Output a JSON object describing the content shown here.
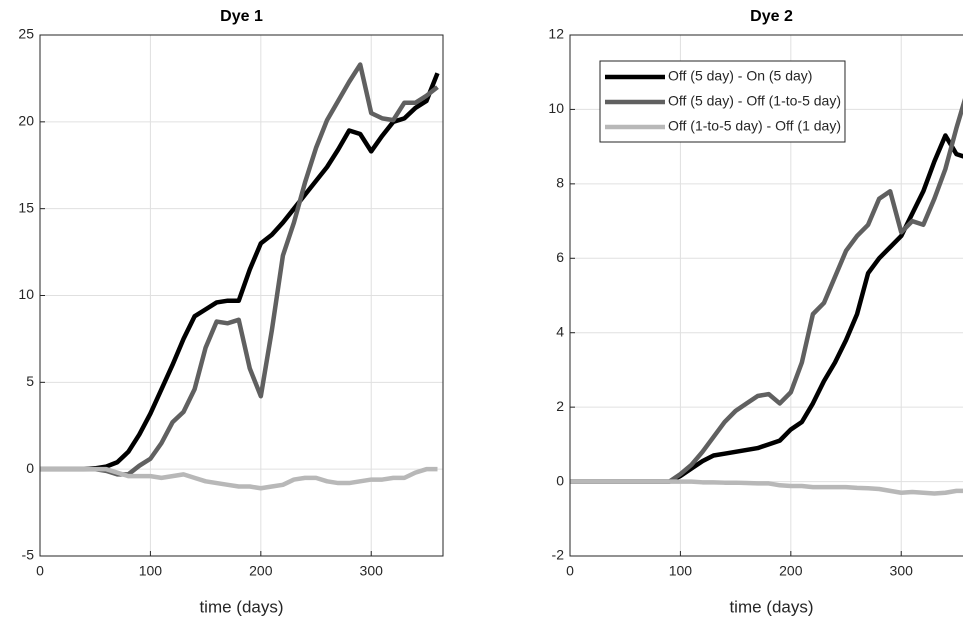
{
  "chart_data": [
    {
      "type": "line",
      "title": "Dye 1",
      "xlabel": "time (days)",
      "x": [
        0,
        10,
        20,
        30,
        40,
        50,
        60,
        70,
        80,
        90,
        100,
        110,
        120,
        130,
        140,
        150,
        160,
        170,
        180,
        190,
        200,
        210,
        220,
        230,
        240,
        250,
        260,
        270,
        280,
        290,
        300,
        310,
        320,
        330,
        340,
        350,
        360
      ],
      "xlim": [
        0,
        365
      ],
      "ylim": [
        -5,
        25
      ],
      "xticks": [
        0,
        100,
        200,
        300
      ],
      "yticks": [
        -5,
        0,
        5,
        10,
        15,
        20,
        25
      ],
      "grid": true,
      "series": [
        {
          "color": "#000000",
          "values": [
            0,
            0,
            0,
            0,
            0,
            0.05,
            0.15,
            0.4,
            1,
            2,
            3.2,
            4.6,
            6,
            7.5,
            8.8,
            9.2,
            9.6,
            9.7,
            9.7,
            11.5,
            13,
            13.5,
            14.2,
            15,
            15.8,
            16.6,
            17.4,
            18.4,
            19.5,
            19.3,
            18.3,
            19.2,
            20,
            20.2,
            20.8,
            21.2,
            22.8
          ]
        },
        {
          "color": "#606060",
          "values": [
            0,
            0,
            0,
            0,
            0,
            0,
            -0.1,
            -0.3,
            -0.3,
            0.2,
            0.6,
            1.5,
            2.7,
            3.3,
            4.6,
            7,
            8.5,
            8.4,
            8.6,
            5.8,
            4.2,
            8,
            12.3,
            14.2,
            16.5,
            18.5,
            20.1,
            21.2,
            22.3,
            23.3,
            20.5,
            20.2,
            20.1,
            21.1,
            21.1,
            21.5,
            22
          ]
        },
        {
          "color": "#b8b8b8",
          "values": [
            0,
            0,
            0,
            0,
            0,
            0,
            0,
            -0.2,
            -0.4,
            -0.4,
            -0.4,
            -0.5,
            -0.4,
            -0.3,
            -0.5,
            -0.7,
            -0.8,
            -0.9,
            -1,
            -1,
            -1.1,
            -1,
            -0.9,
            -0.6,
            -0.5,
            -0.5,
            -0.7,
            -0.8,
            -0.8,
            -0.7,
            -0.6,
            -0.6,
            -0.5,
            -0.5,
            -0.2,
            0,
            0
          ]
        }
      ]
    },
    {
      "type": "line",
      "title": "Dye 2",
      "xlabel": "time (days)",
      "x": [
        0,
        10,
        20,
        30,
        40,
        50,
        60,
        70,
        80,
        90,
        100,
        110,
        120,
        130,
        140,
        150,
        160,
        170,
        180,
        190,
        200,
        210,
        220,
        230,
        240,
        250,
        260,
        270,
        280,
        290,
        300,
        310,
        320,
        330,
        340,
        350,
        360
      ],
      "xlim": [
        0,
        365
      ],
      "ylim": [
        -2,
        12
      ],
      "xticks": [
        0,
        100,
        200,
        300
      ],
      "yticks": [
        -2,
        0,
        2,
        4,
        6,
        8,
        10,
        12
      ],
      "grid": true,
      "legend": "upper left",
      "series": [
        {
          "name": "Off (5 day) - On (5 day)",
          "color": "#000000",
          "values": [
            0,
            0,
            0,
            0,
            0,
            0,
            0,
            0,
            0,
            0,
            0.15,
            0.35,
            0.55,
            0.7,
            0.75,
            0.8,
            0.85,
            0.9,
            1.0,
            1.1,
            1.4,
            1.6,
            2.1,
            2.7,
            3.2,
            3.8,
            4.5,
            5.6,
            6.0,
            6.3,
            6.6,
            7.2,
            7.8,
            8.6,
            9.3,
            8.8,
            8.7
          ]
        },
        {
          "name": "Off (5 day) - Off (1-to-5 day)",
          "color": "#606060",
          "values": [
            0,
            0,
            0,
            0,
            0,
            0,
            0,
            0,
            0,
            0,
            0.2,
            0.45,
            0.8,
            1.2,
            1.6,
            1.9,
            2.1,
            2.3,
            2.35,
            2.1,
            2.4,
            3.2,
            4.5,
            4.8,
            5.5,
            6.2,
            6.6,
            6.9,
            7.6,
            7.8,
            6.7,
            7.0,
            6.9,
            7.6,
            8.4,
            9.5,
            10.5
          ]
        },
        {
          "name": "Off (1-to-5 day) - Off (1 day)",
          "color": "#b8b8b8",
          "values": [
            0,
            0,
            0,
            0,
            0,
            0,
            0,
            0,
            0,
            0,
            0,
            0,
            -0.02,
            -0.02,
            -0.03,
            -0.03,
            -0.04,
            -0.05,
            -0.05,
            -0.1,
            -0.12,
            -0.12,
            -0.15,
            -0.15,
            -0.15,
            -0.15,
            -0.17,
            -0.18,
            -0.2,
            -0.25,
            -0.3,
            -0.28,
            -0.3,
            -0.32,
            -0.3,
            -0.25,
            -0.25
          ]
        }
      ]
    }
  ]
}
